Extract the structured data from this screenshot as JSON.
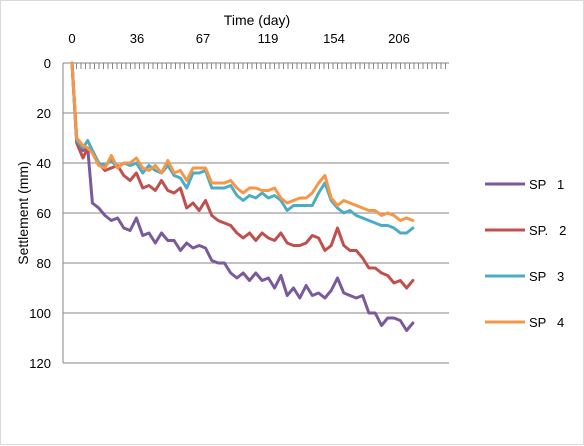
{
  "chart_data": {
    "type": "line",
    "title": "",
    "xlabel": "Time (day)",
    "ylabel": "Settlement (mm)",
    "x_axis_position": "top",
    "y_reversed": true,
    "xlim": [
      0,
      240
    ],
    "ylim": [
      0,
      120
    ],
    "x_tick_labels": [
      "0",
      "36",
      "67",
      "119",
      "154",
      "206"
    ],
    "y_ticks": [
      0,
      20,
      40,
      60,
      80,
      100,
      120
    ],
    "grid": "horizontal",
    "legend_position": "right",
    "series": [
      {
        "name": "SP 1",
        "color": "#7a5a9c",
        "points": [
          [
            0,
            0
          ],
          [
            3,
            30
          ],
          [
            7,
            35
          ],
          [
            10,
            34
          ],
          [
            13,
            56
          ],
          [
            17,
            58
          ],
          [
            21,
            61
          ],
          [
            25,
            63
          ],
          [
            29,
            62
          ],
          [
            33,
            66
          ],
          [
            37,
            67
          ],
          [
            41,
            62
          ],
          [
            45,
            69
          ],
          [
            49,
            68
          ],
          [
            53,
            72
          ],
          [
            57,
            68
          ],
          [
            61,
            71
          ],
          [
            65,
            71
          ],
          [
            69,
            75
          ],
          [
            73,
            72
          ],
          [
            77,
            74
          ],
          [
            81,
            73
          ],
          [
            85,
            74
          ],
          [
            89,
            79
          ],
          [
            93,
            80
          ],
          [
            97,
            80
          ],
          [
            101,
            84
          ],
          [
            105,
            86
          ],
          [
            109,
            84
          ],
          [
            113,
            87
          ],
          [
            117,
            84
          ],
          [
            121,
            87
          ],
          [
            125,
            86
          ],
          [
            129,
            90
          ],
          [
            133,
            85
          ],
          [
            137,
            93
          ],
          [
            141,
            90
          ],
          [
            145,
            94
          ],
          [
            149,
            89
          ],
          [
            153,
            93
          ],
          [
            157,
            92
          ],
          [
            161,
            94
          ],
          [
            165,
            91
          ],
          [
            169,
            86
          ],
          [
            173,
            92
          ],
          [
            177,
            93
          ],
          [
            181,
            94
          ],
          [
            185,
            93
          ],
          [
            189,
            100
          ],
          [
            193,
            100
          ],
          [
            197,
            105
          ],
          [
            201,
            102
          ],
          [
            205,
            102
          ],
          [
            209,
            103
          ],
          [
            213,
            107
          ],
          [
            217,
            104
          ]
        ]
      },
      {
        "name": "SP. 2",
        "color": "#c0504d",
        "points": [
          [
            0,
            0
          ],
          [
            3,
            32
          ],
          [
            7,
            38
          ],
          [
            10,
            34
          ],
          [
            13,
            35
          ],
          [
            17,
            40
          ],
          [
            21,
            43
          ],
          [
            25,
            42
          ],
          [
            29,
            41
          ],
          [
            33,
            45
          ],
          [
            37,
            47
          ],
          [
            41,
            44
          ],
          [
            45,
            50
          ],
          [
            49,
            49
          ],
          [
            53,
            51
          ],
          [
            57,
            47
          ],
          [
            61,
            51
          ],
          [
            65,
            52
          ],
          [
            69,
            50
          ],
          [
            73,
            58
          ],
          [
            77,
            56
          ],
          [
            81,
            59
          ],
          [
            85,
            55
          ],
          [
            89,
            61
          ],
          [
            93,
            63
          ],
          [
            97,
            64
          ],
          [
            101,
            65
          ],
          [
            105,
            68
          ],
          [
            109,
            70
          ],
          [
            113,
            68
          ],
          [
            117,
            71
          ],
          [
            121,
            68
          ],
          [
            125,
            70
          ],
          [
            129,
            71
          ],
          [
            133,
            68
          ],
          [
            137,
            72
          ],
          [
            141,
            73
          ],
          [
            145,
            73
          ],
          [
            149,
            72
          ],
          [
            153,
            69
          ],
          [
            157,
            70
          ],
          [
            161,
            75
          ],
          [
            165,
            73
          ],
          [
            169,
            66
          ],
          [
            173,
            73
          ],
          [
            177,
            75
          ],
          [
            181,
            75
          ],
          [
            185,
            78
          ],
          [
            189,
            82
          ],
          [
            193,
            82
          ],
          [
            197,
            84
          ],
          [
            201,
            85
          ],
          [
            205,
            88
          ],
          [
            209,
            87
          ],
          [
            213,
            90
          ],
          [
            217,
            87
          ]
        ]
      },
      {
        "name": "SP 3",
        "color": "#4bacc6",
        "points": [
          [
            0,
            0
          ],
          [
            3,
            31
          ],
          [
            7,
            34
          ],
          [
            10,
            31
          ],
          [
            13,
            35
          ],
          [
            17,
            40
          ],
          [
            21,
            41
          ],
          [
            25,
            39
          ],
          [
            29,
            42
          ],
          [
            33,
            40
          ],
          [
            37,
            41
          ],
          [
            41,
            40
          ],
          [
            45,
            44
          ],
          [
            49,
            41
          ],
          [
            53,
            43
          ],
          [
            57,
            44
          ],
          [
            61,
            41
          ],
          [
            65,
            45
          ],
          [
            69,
            46
          ],
          [
            73,
            50
          ],
          [
            77,
            44
          ],
          [
            81,
            44
          ],
          [
            85,
            43
          ],
          [
            89,
            50
          ],
          [
            93,
            50
          ],
          [
            97,
            50
          ],
          [
            101,
            49
          ],
          [
            105,
            53
          ],
          [
            109,
            55
          ],
          [
            113,
            53
          ],
          [
            117,
            54
          ],
          [
            121,
            52
          ],
          [
            125,
            54
          ],
          [
            129,
            53
          ],
          [
            133,
            55
          ],
          [
            137,
            59
          ],
          [
            141,
            57
          ],
          [
            145,
            57
          ],
          [
            149,
            57
          ],
          [
            153,
            57
          ],
          [
            157,
            52
          ],
          [
            161,
            48
          ],
          [
            165,
            55
          ],
          [
            169,
            58
          ],
          [
            173,
            60
          ],
          [
            177,
            59
          ],
          [
            181,
            61
          ],
          [
            185,
            62
          ],
          [
            189,
            63
          ],
          [
            193,
            64
          ],
          [
            197,
            65
          ],
          [
            201,
            65
          ],
          [
            205,
            66
          ],
          [
            209,
            68
          ],
          [
            213,
            68
          ],
          [
            217,
            66
          ]
        ]
      },
      {
        "name": "SP 4",
        "color": "#f79646",
        "points": [
          [
            0,
            0
          ],
          [
            3,
            30
          ],
          [
            7,
            33
          ],
          [
            10,
            34
          ],
          [
            13,
            36
          ],
          [
            17,
            41
          ],
          [
            21,
            42
          ],
          [
            25,
            37
          ],
          [
            29,
            42
          ],
          [
            33,
            40
          ],
          [
            37,
            40
          ],
          [
            41,
            38
          ],
          [
            45,
            42
          ],
          [
            49,
            43
          ],
          [
            53,
            41
          ],
          [
            57,
            44
          ],
          [
            61,
            39
          ],
          [
            65,
            44
          ],
          [
            69,
            43
          ],
          [
            73,
            47
          ],
          [
            77,
            42
          ],
          [
            81,
            42
          ],
          [
            85,
            42
          ],
          [
            89,
            48
          ],
          [
            93,
            48
          ],
          [
            97,
            48
          ],
          [
            101,
            47
          ],
          [
            105,
            50
          ],
          [
            109,
            52
          ],
          [
            113,
            50
          ],
          [
            117,
            50
          ],
          [
            121,
            51
          ],
          [
            125,
            51
          ],
          [
            129,
            50
          ],
          [
            133,
            54
          ],
          [
            137,
            56
          ],
          [
            141,
            55
          ],
          [
            145,
            54
          ],
          [
            149,
            54
          ],
          [
            153,
            52
          ],
          [
            157,
            48
          ],
          [
            161,
            45
          ],
          [
            165,
            54
          ],
          [
            169,
            57
          ],
          [
            173,
            55
          ],
          [
            177,
            56
          ],
          [
            181,
            57
          ],
          [
            185,
            58
          ],
          [
            189,
            59
          ],
          [
            193,
            59
          ],
          [
            197,
            61
          ],
          [
            201,
            60
          ],
          [
            205,
            61
          ],
          [
            209,
            63
          ],
          [
            213,
            62
          ],
          [
            217,
            63
          ]
        ]
      }
    ]
  }
}
